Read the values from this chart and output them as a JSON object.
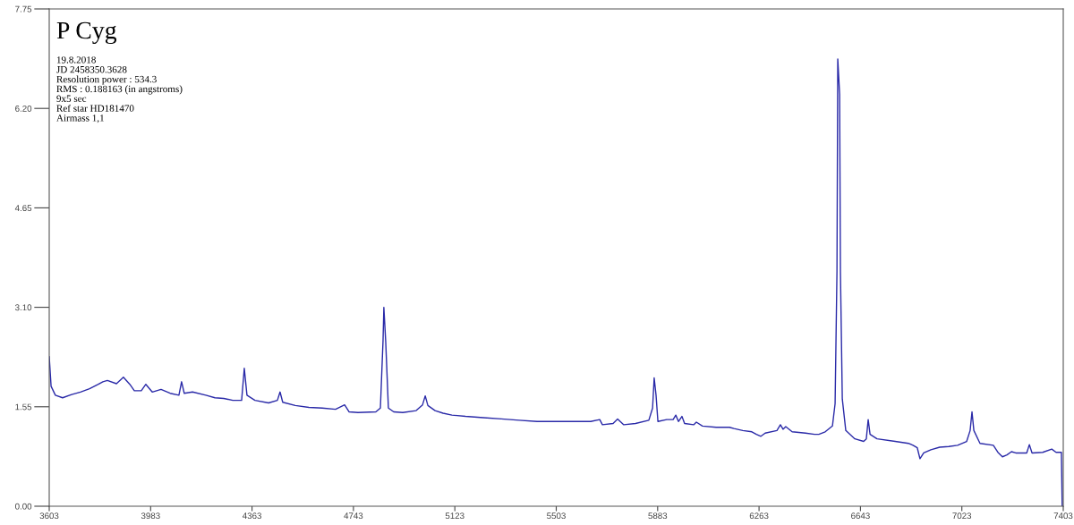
{
  "chart_data": {
    "type": "line",
    "title": "P Cyg",
    "annotations": [
      "19.8.2018",
      "JD 2458350.3628",
      "Resolution power : 534.3",
      "RMS : 0.188163 (in angstroms)",
      "9x5 sec",
      "Ref star HD181470",
      "Airmass 1,1"
    ],
    "xlim": [
      3603,
      7403
    ],
    "xticks": [
      3603,
      3983,
      4363,
      4743,
      5123,
      5503,
      5883,
      6263,
      6643,
      7023,
      7403
    ],
    "ylim": [
      0,
      7.75
    ],
    "yticks": [
      {
        "value": 0,
        "label": "0.00"
      },
      {
        "value": 1.55,
        "label": "1.55"
      },
      {
        "value": 3.1,
        "label": "3.10"
      },
      {
        "value": 4.65,
        "label": "4.65"
      },
      {
        "value": 6.2,
        "label": "6.20"
      },
      {
        "value": 7.75,
        "label": "7.75"
      }
    ],
    "grid": false,
    "marker": "none",
    "line_style": "solid",
    "series": [
      {
        "color": "#2a2aa8",
        "x": [
          3603,
          3610,
          3626,
          3653,
          3687,
          3720,
          3754,
          3787,
          3804,
          3821,
          3855,
          3881,
          3905,
          3922,
          3948,
          3965,
          3989,
          4022,
          4056,
          4089,
          4099,
          4109,
          4140,
          4190,
          4224,
          4257,
          4291,
          4324,
          4334,
          4344,
          4374,
          4425,
          4458,
          4468,
          4478,
          4525,
          4576,
          4626,
          4676,
          4710,
          4727,
          4760,
          4827,
          4844,
          4854,
          4857,
          4864,
          4874,
          4894,
          4928,
          4978,
          5002,
          5012,
          5022,
          5049,
          5079,
          5112,
          5163,
          5230,
          5297,
          5364,
          5431,
          5498,
          5565,
          5632,
          5666,
          5676,
          5716,
          5733,
          5756,
          5800,
          5850,
          5864,
          5870,
          5877,
          5884,
          5917,
          5941,
          5951,
          5961,
          5974,
          5984,
          6018,
          6028,
          6051,
          6102,
          6152,
          6169,
          6202,
          6236,
          6253,
          6270,
          6286,
          6330,
          6343,
          6353,
          6363,
          6387,
          6437,
          6471,
          6487,
          6511,
          6538,
          6548,
          6555,
          6558,
          6565,
          6568,
          6575,
          6588,
          6622,
          6655,
          6665,
          6672,
          6679,
          6705,
          6773,
          6823,
          6840,
          6856,
          6866,
          6880,
          6907,
          6940,
          6974,
          7007,
          7041,
          7054,
          7061,
          7068,
          7091,
          7141,
          7158,
          7175,
          7192,
          7209,
          7225,
          7242,
          7266,
          7276,
          7286,
          7326,
          7360,
          7376,
          7396,
          7399
        ],
        "values": [
          2.33,
          1.87,
          1.73,
          1.69,
          1.74,
          1.78,
          1.83,
          1.9,
          1.94,
          1.96,
          1.91,
          2.01,
          1.9,
          1.8,
          1.8,
          1.9,
          1.78,
          1.82,
          1.76,
          1.73,
          1.94,
          1.76,
          1.78,
          1.73,
          1.69,
          1.68,
          1.65,
          1.65,
          2.15,
          1.73,
          1.65,
          1.61,
          1.65,
          1.78,
          1.62,
          1.57,
          1.54,
          1.53,
          1.51,
          1.58,
          1.47,
          1.46,
          1.47,
          1.53,
          2.59,
          3.1,
          2.56,
          1.53,
          1.47,
          1.46,
          1.49,
          1.58,
          1.72,
          1.57,
          1.49,
          1.45,
          1.42,
          1.4,
          1.38,
          1.36,
          1.34,
          1.32,
          1.32,
          1.32,
          1.32,
          1.35,
          1.27,
          1.29,
          1.36,
          1.27,
          1.29,
          1.34,
          1.53,
          2.0,
          1.73,
          1.32,
          1.35,
          1.35,
          1.42,
          1.32,
          1.4,
          1.29,
          1.27,
          1.31,
          1.25,
          1.23,
          1.23,
          1.21,
          1.18,
          1.16,
          1.12,
          1.09,
          1.14,
          1.18,
          1.27,
          1.2,
          1.24,
          1.16,
          1.14,
          1.12,
          1.12,
          1.16,
          1.25,
          1.6,
          3.66,
          6.97,
          6.42,
          3.66,
          1.67,
          1.18,
          1.05,
          1.01,
          1.05,
          1.35,
          1.12,
          1.05,
          1.01,
          0.98,
          0.95,
          0.91,
          0.74,
          0.83,
          0.88,
          0.92,
          0.93,
          0.95,
          1.01,
          1.18,
          1.47,
          1.18,
          0.98,
          0.95,
          0.84,
          0.77,
          0.8,
          0.85,
          0.83,
          0.83,
          0.83,
          0.96,
          0.83,
          0.84,
          0.89,
          0.84,
          0.84,
          0
        ]
      }
    ]
  }
}
